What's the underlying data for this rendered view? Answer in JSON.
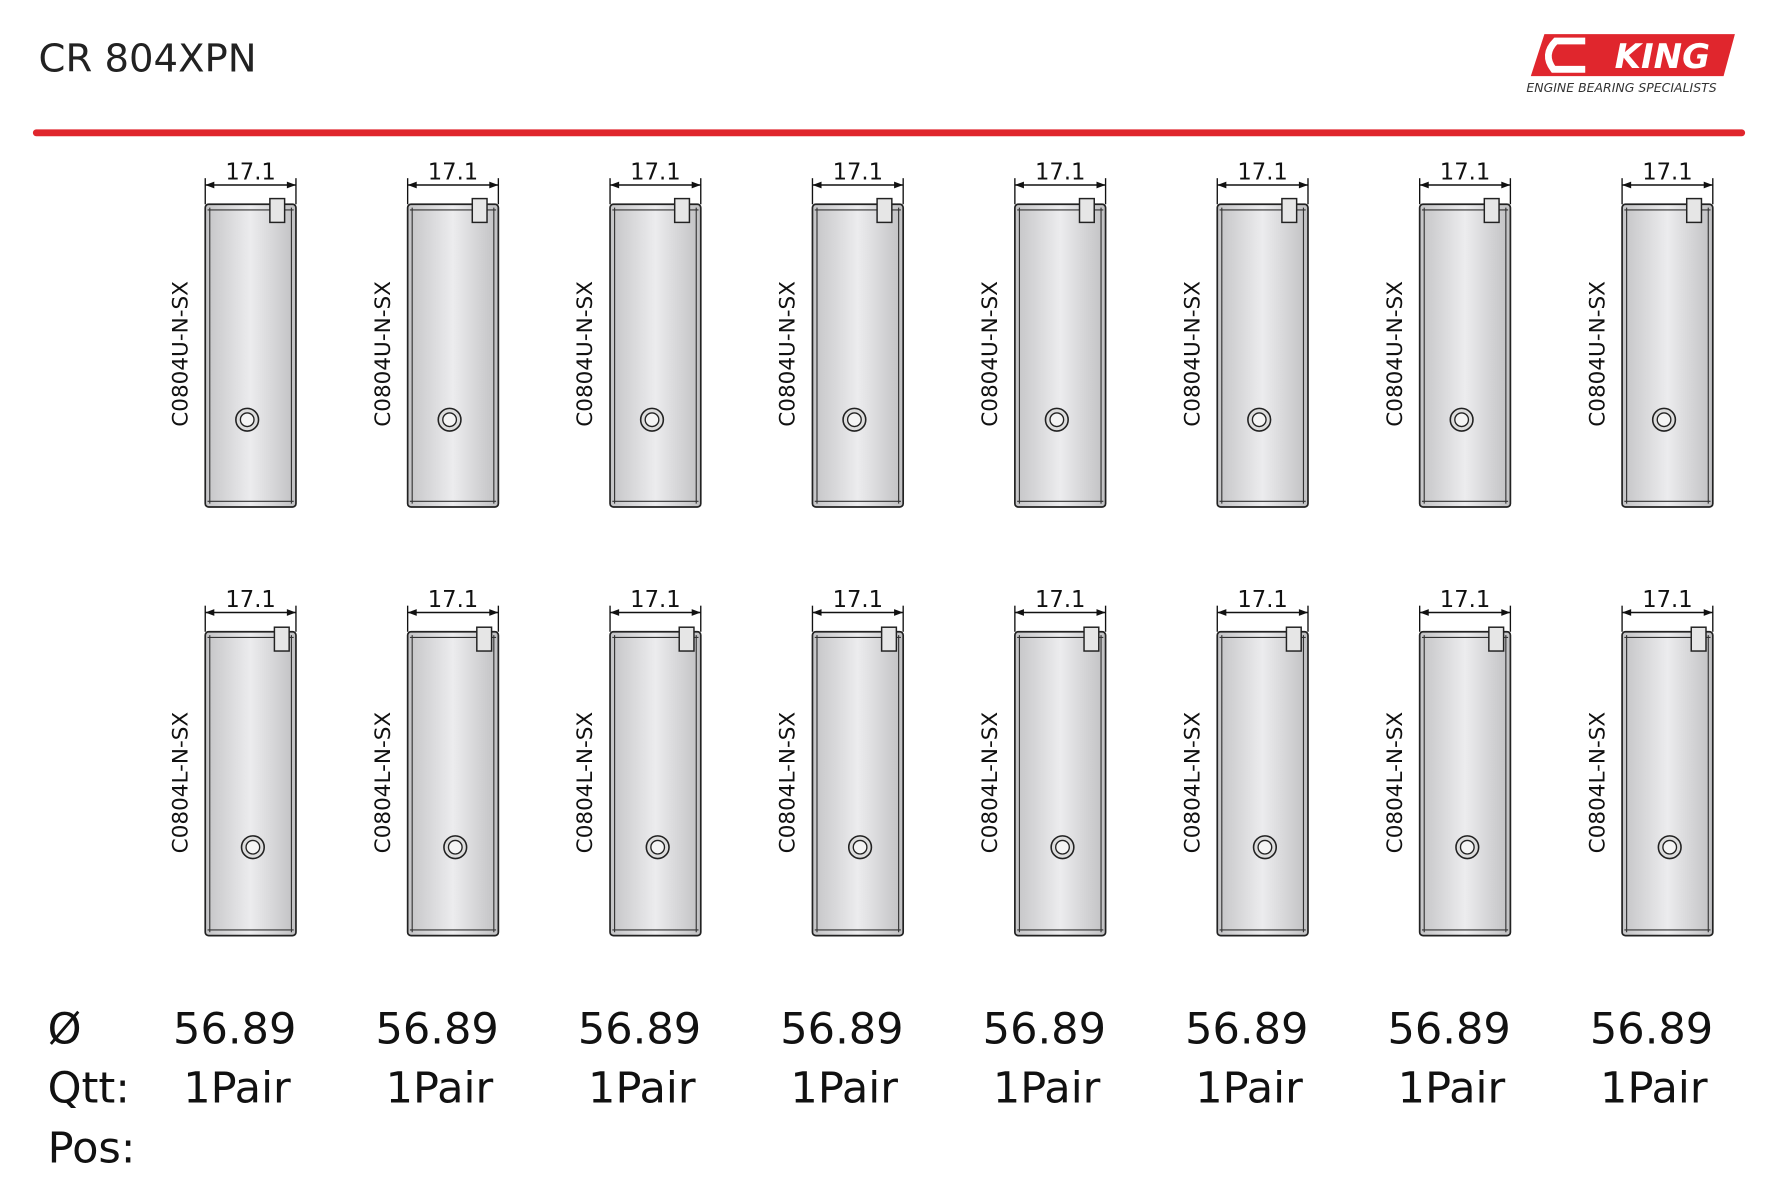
{
  "header": {
    "title": "CR 804XPN",
    "logo": {
      "brand": "KING",
      "tagline": "ENGINE BEARING SPECIALISTS"
    }
  },
  "rows": {
    "upper": {
      "parts": [
        {
          "width": 17.1,
          "part": "C0804U-N-SX"
        },
        {
          "width": 17.1,
          "part": "C0804U-N-SX"
        },
        {
          "width": 17.1,
          "part": "C0804U-N-SX"
        },
        {
          "width": 17.1,
          "part": "C0804U-N-SX"
        },
        {
          "width": 17.1,
          "part": "C0804U-N-SX"
        },
        {
          "width": 17.1,
          "part": "C0804U-N-SX"
        },
        {
          "width": 17.1,
          "part": "C0804U-N-SX"
        },
        {
          "width": 17.1,
          "part": "C0804U-N-SX"
        }
      ]
    },
    "lower": {
      "parts": [
        {
          "width": 17.1,
          "part": "C0804L-N-SX"
        },
        {
          "width": 17.1,
          "part": "C0804L-N-SX"
        },
        {
          "width": 17.1,
          "part": "C0804L-N-SX"
        },
        {
          "width": 17.1,
          "part": "C0804L-N-SX"
        },
        {
          "width": 17.1,
          "part": "C0804L-N-SX"
        },
        {
          "width": 17.1,
          "part": "C0804L-N-SX"
        },
        {
          "width": 17.1,
          "part": "C0804L-N-SX"
        },
        {
          "width": 17.1,
          "part": "C0804L-N-SX"
        }
      ]
    }
  },
  "table": {
    "labels": {
      "diameter": "Ø",
      "quantity": "Qtt:",
      "position": "Pos:"
    },
    "diameters": [
      56.89,
      56.89,
      56.89,
      56.89,
      56.89,
      56.89,
      56.89,
      56.89
    ],
    "quantities": [
      "1Pair",
      "1Pair",
      "1Pair",
      "1Pair",
      "1Pair",
      "1Pair",
      "1Pair",
      "1Pair"
    ]
  }
}
